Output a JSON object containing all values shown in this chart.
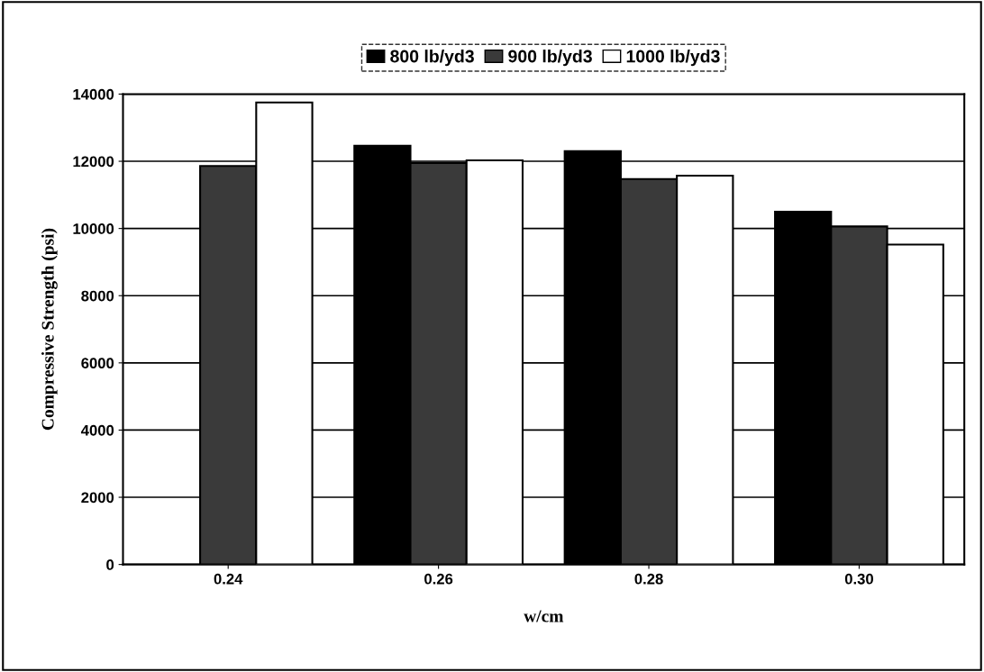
{
  "chart_data": {
    "type": "bar",
    "xlabel": "w/cm",
    "ylabel": "Compressive Strength (psi)",
    "categories": [
      "0.24",
      "0.26",
      "0.28",
      "0.30"
    ],
    "series": [
      {
        "name": "800 lb/yd3",
        "color": "#000000",
        "values": [
          null,
          12460,
          12300,
          10500
        ]
      },
      {
        "name": "900 lb/yd3",
        "color": "#3a3a3a",
        "values": [
          11860,
          11950,
          11470,
          10060
        ]
      },
      {
        "name": "1000 lb/yd3",
        "color": "#ffffff",
        "values": [
          13750,
          12030,
          11570,
          9520
        ]
      }
    ],
    "ylim": [
      0,
      14000
    ],
    "yticks": [
      0,
      2000,
      4000,
      6000,
      8000,
      10000,
      12000,
      14000
    ],
    "grid": "y",
    "legend": "top"
  }
}
